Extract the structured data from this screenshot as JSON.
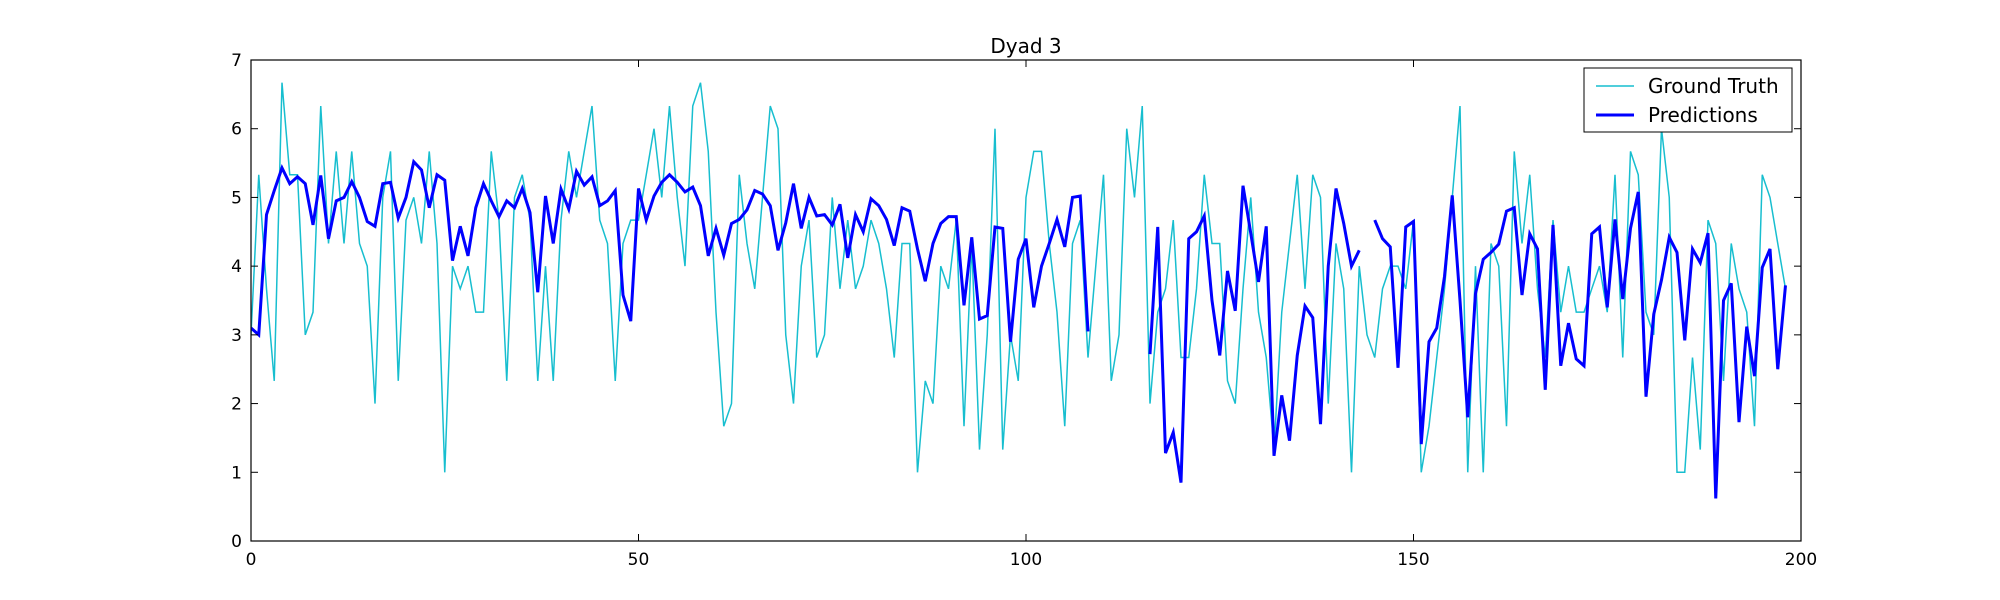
{
  "chart_data": {
    "type": "line",
    "title": "Dyad 3",
    "xlabel": "",
    "ylabel": "",
    "xlim": [
      0,
      200
    ],
    "ylim": [
      0,
      7
    ],
    "xticks": [
      0,
      50,
      100,
      150,
      200
    ],
    "yticks": [
      0,
      1,
      2,
      3,
      4,
      5,
      6,
      7
    ],
    "grid": false,
    "legend": "top-right",
    "series": [
      {
        "name": "Ground Truth",
        "color": "#17becf",
        "x": [
          0,
          1,
          2,
          3,
          4,
          5,
          6,
          7,
          8,
          9,
          10,
          11,
          12,
          13,
          14,
          15,
          16,
          17,
          18,
          19,
          20,
          21,
          22,
          23,
          24,
          25,
          26,
          27,
          28,
          29,
          30,
          31,
          32,
          33,
          34,
          35,
          36,
          37,
          38,
          39,
          40,
          41,
          42,
          43,
          44,
          45,
          46,
          47,
          48,
          49,
          50,
          51,
          52,
          53,
          54,
          55,
          56,
          57,
          58,
          59,
          60,
          61,
          62,
          63,
          64,
          65,
          66,
          67,
          68,
          69,
          70,
          71,
          72,
          73,
          74,
          75,
          76,
          77,
          78,
          79,
          80,
          81,
          82,
          83,
          84,
          85,
          86,
          87,
          88,
          89,
          90,
          91,
          92,
          93,
          94,
          95,
          96,
          97,
          98,
          99,
          100,
          101,
          102,
          103,
          104,
          105,
          106,
          107,
          108,
          109,
          110,
          111,
          112,
          113,
          114,
          115,
          116,
          117,
          118,
          119,
          120,
          121,
          122,
          123,
          124,
          125,
          126,
          127,
          128,
          129,
          130,
          131,
          132,
          133,
          134,
          135,
          136,
          137,
          138,
          139,
          140,
          141,
          142,
          143,
          144,
          145,
          146,
          147,
          148,
          149,
          150,
          151,
          152,
          153,
          154,
          155,
          156,
          157,
          158,
          159,
          160,
          161,
          162,
          163,
          164,
          165,
          166,
          167,
          168,
          169,
          170,
          171,
          172,
          173,
          174,
          175,
          176,
          177,
          178,
          179,
          180,
          181,
          182,
          183,
          184,
          185,
          186,
          187,
          188,
          189,
          190,
          191,
          192,
          193,
          194,
          195,
          196,
          197,
          198
        ],
        "y": [
          3.0,
          5.33,
          3.67,
          2.33,
          6.67,
          5.33,
          5.33,
          3.0,
          3.33,
          6.33,
          4.33,
          5.67,
          4.33,
          5.67,
          4.33,
          4.0,
          2.0,
          5.0,
          5.67,
          2.33,
          4.67,
          5.0,
          4.33,
          5.67,
          4.33,
          1.0,
          4.0,
          3.67,
          4.0,
          3.33,
          3.33,
          5.67,
          4.67,
          2.33,
          5.0,
          5.33,
          4.67,
          2.33,
          4.0,
          2.33,
          4.67,
          5.67,
          5.0,
          5.67,
          6.33,
          4.67,
          4.33,
          2.33,
          4.33,
          4.67,
          4.67,
          5.33,
          6.0,
          5.0,
          6.33,
          5.0,
          4.0,
          6.33,
          6.67,
          5.67,
          3.33,
          1.67,
          2.0,
          5.33,
          4.33,
          3.67,
          5.0,
          6.33,
          6.0,
          3.0,
          2.0,
          4.0,
          4.67,
          2.67,
          3.0,
          5.0,
          3.67,
          4.67,
          3.67,
          4.0,
          4.67,
          4.33,
          3.67,
          2.67,
          4.33,
          4.33,
          1.0,
          2.33,
          2.0,
          4.0,
          3.67,
          4.67,
          1.67,
          4.33,
          1.33,
          3.0,
          6.0,
          1.33,
          3.0,
          2.33,
          5.0,
          5.67,
          5.67,
          4.33,
          3.33,
          1.67,
          4.33,
          4.67,
          2.67,
          4.0,
          5.33,
          2.33,
          3.0,
          6.0,
          5.0,
          6.33,
          2.0,
          3.33,
          3.67,
          4.67,
          2.67,
          2.67,
          3.67,
          5.33,
          4.33,
          4.33,
          2.33,
          2.0,
          3.67,
          5.0,
          3.33,
          2.67,
          1.33,
          3.33,
          4.33,
          5.33,
          3.67,
          5.33,
          5.0,
          2.0,
          4.33,
          3.67,
          1.0,
          4.0,
          3.0,
          2.67,
          3.67,
          4.0,
          4.0,
          3.67,
          4.67,
          1.0,
          1.67,
          2.67,
          3.67,
          5.0,
          6.33,
          1.0,
          4.0,
          1.0,
          4.33,
          4.0,
          1.67,
          5.67,
          4.33,
          5.33,
          3.67,
          2.67,
          4.67,
          3.33,
          4.0,
          3.33,
          3.33,
          3.67,
          4.0,
          3.33,
          5.33,
          2.67,
          5.67,
          5.33,
          3.33,
          3.0,
          6.0,
          5.0,
          1.0,
          1.0,
          2.67,
          1.33,
          4.67,
          4.33,
          2.33,
          4.33,
          3.67,
          3.33,
          1.67,
          5.33,
          5.0,
          4.33,
          3.67
        ]
      },
      {
        "name": "Predictions",
        "color": "#0000ff",
        "x": [
          0,
          1,
          2,
          3,
          4,
          5,
          6,
          7,
          8,
          9,
          10,
          11,
          12,
          13,
          14,
          15,
          16,
          17,
          18,
          19,
          20,
          21,
          22,
          23,
          24,
          25,
          26,
          27,
          28,
          29,
          30,
          31,
          32,
          33,
          34,
          35,
          36,
          37,
          38,
          39,
          40,
          41,
          42,
          43,
          44,
          45,
          46,
          47,
          48,
          49,
          50,
          51,
          52,
          53,
          54,
          55,
          56,
          57,
          58,
          59,
          60,
          61,
          62,
          63,
          64,
          65,
          66,
          67,
          68,
          69,
          70,
          71,
          72,
          73,
          74,
          75,
          76,
          77,
          78,
          79,
          80,
          81,
          82,
          83,
          84,
          85,
          86,
          87,
          88,
          89,
          90,
          91,
          92,
          93,
          94,
          95,
          96,
          97,
          98,
          99,
          100,
          101,
          102,
          103,
          104,
          105,
          106,
          107,
          108,
          109,
          110,
          111,
          112,
          113,
          114,
          115,
          116,
          117,
          118,
          119,
          120,
          121,
          122,
          123,
          124,
          125,
          126,
          127,
          128,
          129,
          130,
          131,
          132,
          133,
          134,
          135,
          136,
          137,
          138,
          139,
          140,
          141,
          142,
          143,
          144,
          145,
          146,
          147,
          148,
          149,
          150,
          151,
          152,
          153,
          154,
          155,
          156,
          157,
          158,
          159,
          160,
          161,
          162,
          163,
          164,
          165,
          166,
          167,
          168,
          169,
          170,
          171,
          172,
          173,
          174,
          175,
          176,
          177,
          178,
          179,
          180,
          181,
          182,
          183,
          184,
          185,
          186,
          187,
          188,
          189,
          190,
          191,
          192,
          193,
          194,
          195,
          196,
          197,
          198
        ],
        "y": [
          3.1,
          3.0,
          4.75,
          5.1,
          5.43,
          5.2,
          5.3,
          5.2,
          4.6,
          5.32,
          4.4,
          4.95,
          5.0,
          5.23,
          5.0,
          4.65,
          4.58,
          5.2,
          5.22,
          4.7,
          5.0,
          5.52,
          5.4,
          4.85,
          5.33,
          5.25,
          4.08,
          4.58,
          4.15,
          4.85,
          5.2,
          4.95,
          4.72,
          4.95,
          4.85,
          5.13,
          4.78,
          3.62,
          5.02,
          4.33,
          5.12,
          4.83,
          5.38,
          5.18,
          5.3,
          4.88,
          4.95,
          5.1,
          3.58,
          3.2,
          5.13,
          4.67,
          5.02,
          5.22,
          5.33,
          5.22,
          5.08,
          5.15,
          4.88,
          4.15,
          4.55,
          4.16,
          4.62,
          4.68,
          4.82,
          5.1,
          5.05,
          4.88,
          4.23,
          4.63,
          5.2,
          4.55,
          5.0,
          4.73,
          4.75,
          4.6,
          4.9,
          4.12,
          4.75,
          4.5,
          4.98,
          4.88,
          4.68,
          4.3,
          4.85,
          4.8,
          4.25,
          3.78,
          4.33,
          4.62,
          4.72,
          4.72,
          3.43,
          4.42,
          3.23,
          3.28,
          4.57,
          4.55,
          2.9,
          4.1,
          4.4,
          3.4,
          4.0,
          4.33,
          4.68,
          4.28,
          5.0,
          5.02,
          3.05,
          null,
          null,
          null,
          null,
          null,
          null,
          null,
          2.72,
          4.57,
          1.28,
          1.58,
          0.85,
          4.4,
          4.5,
          4.73,
          3.5,
          2.7,
          3.93,
          3.35,
          5.17,
          4.48,
          3.77,
          4.58,
          1.24,
          2.12,
          1.46,
          2.7,
          3.42,
          3.25,
          1.7,
          4.0,
          5.13,
          4.62,
          4.0,
          4.23,
          null,
          4.67,
          4.4,
          4.28,
          2.52,
          4.57,
          4.65,
          1.41,
          2.9,
          3.1,
          3.85,
          5.03,
          3.5,
          1.8,
          3.6,
          4.1,
          4.2,
          4.32,
          4.8,
          4.85,
          3.58,
          4.47,
          4.25,
          2.2,
          4.6,
          2.55,
          3.17,
          2.65,
          2.55,
          4.47,
          4.57,
          3.4,
          4.68,
          3.52,
          4.55,
          5.08,
          2.1,
          3.3,
          3.8,
          4.42,
          4.2,
          2.92,
          4.25,
          4.05,
          4.48,
          0.62,
          3.5,
          3.75,
          1.73,
          3.12,
          2.4,
          3.98,
          4.25,
          2.5,
          3.72
        ]
      }
    ]
  }
}
